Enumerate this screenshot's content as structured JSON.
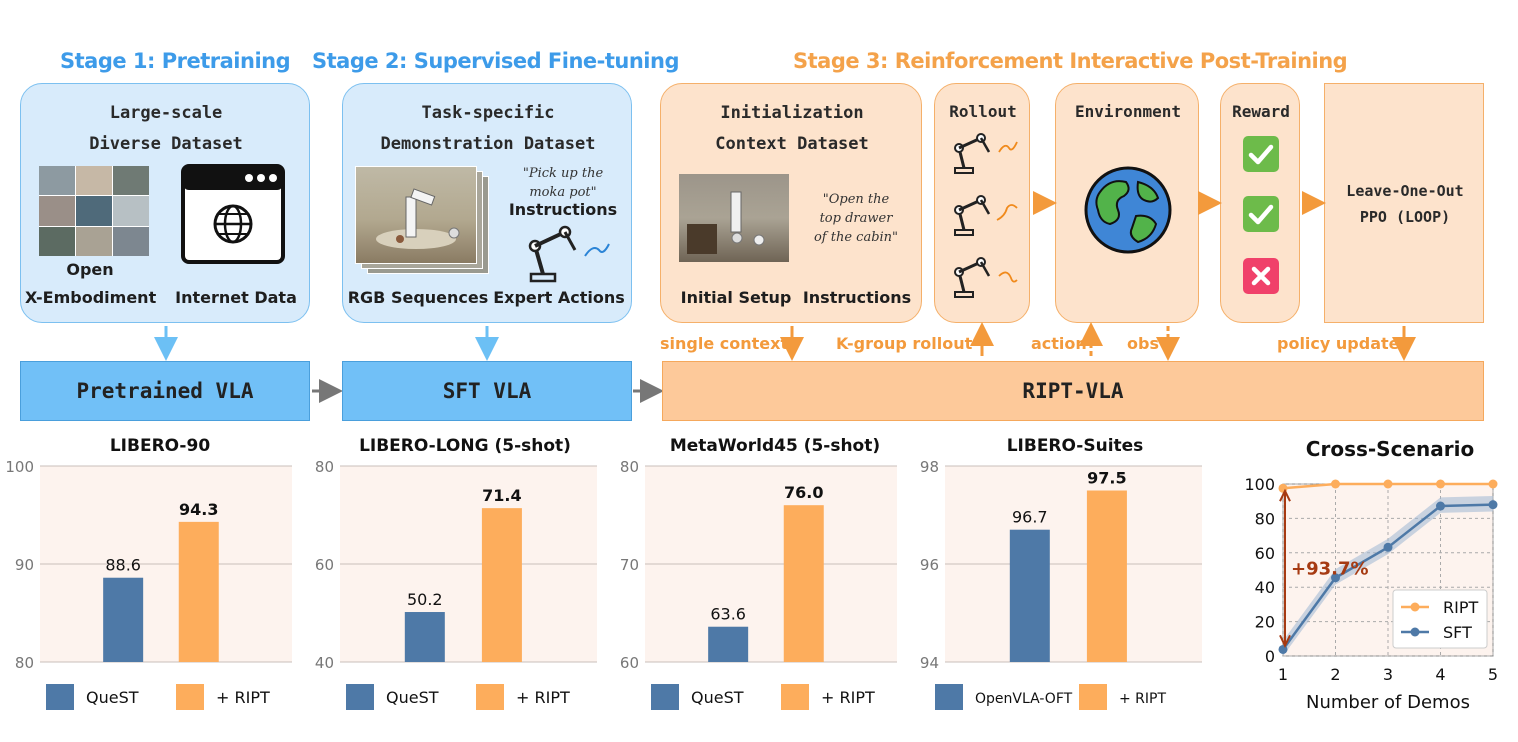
{
  "stages": {
    "stage1": {
      "title": "Stage 1: Pretraining",
      "panel_title": [
        "Large-scale",
        "Diverse Dataset"
      ],
      "caption_left": [
        "Open",
        "X-Embodiment"
      ],
      "caption_right": "Internet Data"
    },
    "stage2": {
      "title": "Stage 2: Supervised Fine-tuning",
      "panel_title": [
        "Task-specific",
        "Demonstration Dataset"
      ],
      "quote": [
        "\"Pick up the",
        "moka pot\""
      ],
      "instructions_label": "Instructions",
      "caption_left": "RGB Sequences",
      "caption_right": "Expert Actions"
    },
    "stage3": {
      "title": "Stage 3: Reinforcement Interactive Post-Training",
      "init_panel": {
        "title": [
          "Initialization",
          "Context Dataset"
        ],
        "quote": [
          "\"Open the",
          "top drawer",
          "of the cabin\""
        ],
        "caption_left": "Initial Setup",
        "caption_right": "Instructions"
      },
      "rollout_label": "Rollout",
      "environment_label": "Environment",
      "reward_label": "Reward",
      "loop_label": [
        "Leave-One-Out",
        "PPO (LOOP)"
      ]
    }
  },
  "vla": {
    "pretrained": "Pretrained VLA",
    "sft": "SFT VLA",
    "ript": "RIPT-VLA"
  },
  "flow_labels": {
    "single_context": "single context",
    "k_group": "K-group rollout",
    "action": "action",
    "obs": "obs",
    "policy_update": "policy update"
  },
  "colors": {
    "quest": "#4e79a7",
    "ript": "#fdad5c",
    "blue_accent": "#3d9be9",
    "orange_accent": "#f4a24a",
    "gain": "#a63a12"
  },
  "chart_data": [
    {
      "type": "bar",
      "title": "LIBERO-90",
      "categories": [
        "QueST",
        "+ RIPT"
      ],
      "values": [
        88.6,
        94.3
      ],
      "ylim": [
        80,
        100
      ],
      "yticks": [
        80,
        90,
        100
      ]
    },
    {
      "type": "bar",
      "title": "LIBERO-LONG (5-shot)",
      "categories": [
        "QueST",
        "+ RIPT"
      ],
      "values": [
        50.2,
        71.4
      ],
      "ylim": [
        40,
        80
      ],
      "yticks": [
        40,
        60,
        80
      ]
    },
    {
      "type": "bar",
      "title": "MetaWorld45 (5-shot)",
      "categories": [
        "QueST",
        "+ RIPT"
      ],
      "values": [
        63.6,
        76.0
      ],
      "ylim": [
        60,
        80
      ],
      "yticks": [
        60,
        70,
        80
      ]
    },
    {
      "type": "bar",
      "title": "LIBERO-Suites",
      "categories": [
        "OpenVLA-OFT",
        "+ RIPT"
      ],
      "values": [
        96.7,
        97.5
      ],
      "ylim": [
        94,
        98
      ],
      "yticks": [
        94,
        96,
        98
      ]
    },
    {
      "type": "line",
      "title": "Cross-Scenario",
      "xlabel": "Number of Demos",
      "x": [
        1,
        2,
        3,
        4,
        5
      ],
      "ylim": [
        0,
        100
      ],
      "yticks": [
        0,
        20,
        40,
        60,
        80,
        100
      ],
      "series": [
        {
          "name": "RIPT",
          "values": [
            97.5,
            100,
            100,
            100,
            100
          ]
        },
        {
          "name": "SFT",
          "values": [
            3.8,
            45.5,
            63.2,
            87.2,
            88.0
          ]
        }
      ],
      "annotation": "+93.7%",
      "legend": "bottom-right"
    }
  ]
}
